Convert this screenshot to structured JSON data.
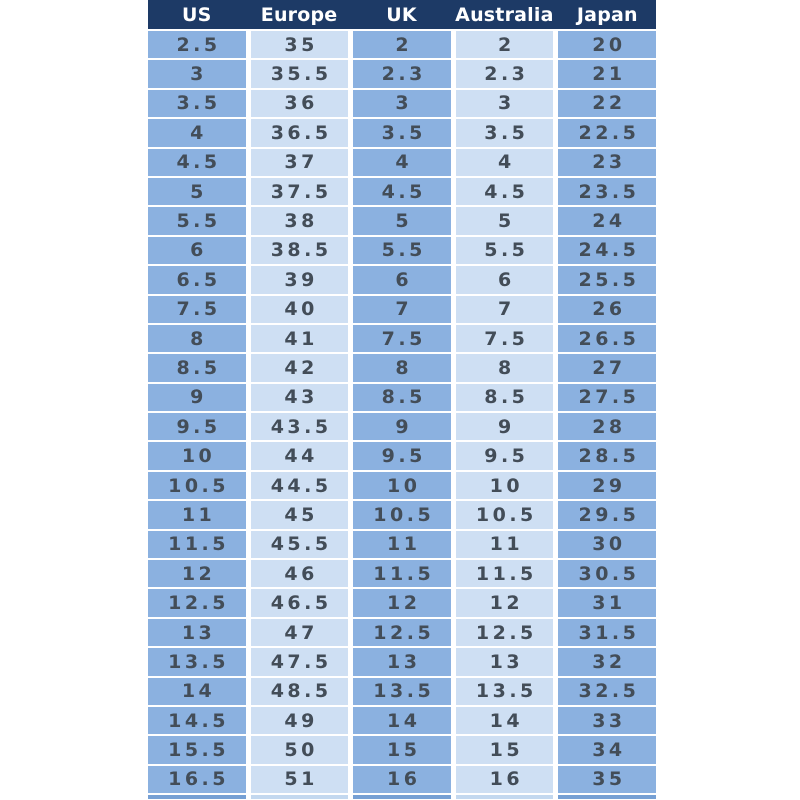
{
  "table": {
    "headers": [
      "US",
      "Europe",
      "UK",
      "Australia",
      "Japan"
    ],
    "rows": [
      [
        "2.5",
        "35",
        "2",
        "2",
        "20"
      ],
      [
        "3",
        "35.5",
        "2.3",
        "2.3",
        "21"
      ],
      [
        "3.5",
        "36",
        "3",
        "3",
        "22"
      ],
      [
        "4",
        "36.5",
        "3.5",
        "3.5",
        "22.5"
      ],
      [
        "4.5",
        "37",
        "4",
        "4",
        "23"
      ],
      [
        "5",
        "37.5",
        "4.5",
        "4.5",
        "23.5"
      ],
      [
        "5.5",
        "38",
        "5",
        "5",
        "24"
      ],
      [
        "6",
        "38.5",
        "5.5",
        "5.5",
        "24.5"
      ],
      [
        "6.5",
        "39",
        "6",
        "6",
        "25.5"
      ],
      [
        "7.5",
        "40",
        "7",
        "7",
        "26"
      ],
      [
        "8",
        "41",
        "7.5",
        "7.5",
        "26.5"
      ],
      [
        "8.5",
        "42",
        "8",
        "8",
        "27"
      ],
      [
        "9",
        "43",
        "8.5",
        "8.5",
        "27.5"
      ],
      [
        "9.5",
        "43.5",
        "9",
        "9",
        "28"
      ],
      [
        "10",
        "44",
        "9.5",
        "9.5",
        "28.5"
      ],
      [
        "10.5",
        "44.5",
        "10",
        "10",
        "29"
      ],
      [
        "11",
        "45",
        "10.5",
        "10.5",
        "29.5"
      ],
      [
        "11.5",
        "45.5",
        "11",
        "11",
        "30"
      ],
      [
        "12",
        "46",
        "11.5",
        "11.5",
        "30.5"
      ],
      [
        "12.5",
        "46.5",
        "12",
        "12",
        "31"
      ],
      [
        "13",
        "47",
        "12.5",
        "12.5",
        "31.5"
      ],
      [
        "13.5",
        "47.5",
        "13",
        "13",
        "32"
      ],
      [
        "14",
        "48.5",
        "13.5",
        "13.5",
        "32.5"
      ],
      [
        "14.5",
        "49",
        "14",
        "14",
        "33"
      ],
      [
        "15.5",
        "50",
        "15",
        "15",
        "34"
      ],
      [
        "16.5",
        "51",
        "16",
        "16",
        "35"
      ]
    ]
  },
  "colors": {
    "header_bg": "#1d3a66",
    "header_text": "#ffffff",
    "cell_medium": "#8bb1e0",
    "cell_light": "#cedff3",
    "cell_text": "#434d58",
    "background": "#ffffff"
  }
}
